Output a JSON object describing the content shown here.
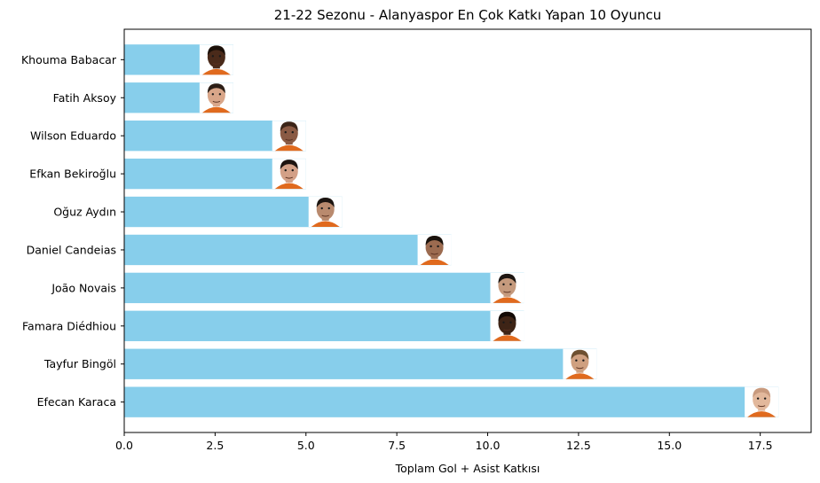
{
  "chart_data": {
    "type": "bar",
    "orientation": "horizontal",
    "title": "21-22 Sezonu - Alanyaspor En Çok Katkı Yapan 10 Oyuncu",
    "xlabel": "Toplam Gol + Asist Katkısı",
    "ylabel": "",
    "xlim": [
      0,
      18.9
    ],
    "xticks": [
      0.0,
      2.5,
      5.0,
      7.5,
      10.0,
      12.5,
      15.0,
      17.5
    ],
    "xtick_labels": [
      "0.0",
      "2.5",
      "5.0",
      "7.5",
      "10.0",
      "12.5",
      "15.0",
      "17.5"
    ],
    "categories": [
      "Khouma Babacar",
      "Fatih Aksoy",
      "Wilson Eduardo",
      "Efkan Bekiroğlu",
      "Oğuz Aydın",
      "Daniel Candeias",
      "João Novais",
      "Famara Diédhiou",
      "Tayfur Bingöl",
      "Efecan Karaca"
    ],
    "values": [
      3,
      3,
      5,
      5,
      6,
      9,
      11,
      11,
      13,
      18
    ],
    "bar_color": "#87CEEB",
    "grid": false,
    "legend": false,
    "player_photos": [
      {
        "player": "Khouma Babacar",
        "skin": "#4a2a1a",
        "hair": "#1a0f08",
        "shirt": "#e06a1e"
      },
      {
        "player": "Fatih Aksoy",
        "skin": "#d9a689",
        "hair": "#2b1e16",
        "shirt": "#e06a1e"
      },
      {
        "player": "Wilson Eduardo",
        "skin": "#8a5a44",
        "hair": "#3a2418",
        "shirt": "#e06a1e"
      },
      {
        "player": "Efkan Bekiroğlu",
        "skin": "#d3a087",
        "hair": "#1e1410",
        "shirt": "#e06a1e"
      },
      {
        "player": "Oğuz Aydın",
        "skin": "#b98a6e",
        "hair": "#1b1410",
        "shirt": "#e06a1e"
      },
      {
        "player": "Daniel Candeias",
        "skin": "#9c6b50",
        "hair": "#1a120c",
        "shirt": "#e06a1e"
      },
      {
        "player": "João Novais",
        "skin": "#c59a7d",
        "hair": "#1d1612",
        "shirt": "#e06a1e"
      },
      {
        "player": "Famara Diédhiou",
        "skin": "#3e2416",
        "hair": "#120a06",
        "shirt": "#e06a1e"
      },
      {
        "player": "Tayfur Bingöl",
        "skin": "#cfa080",
        "hair": "#6e5030",
        "shirt": "#e06a1e"
      },
      {
        "player": "Efecan Karaca",
        "skin": "#e2b89c",
        "hair": "#c89a7e",
        "shirt": "#e06a1e"
      }
    ]
  }
}
